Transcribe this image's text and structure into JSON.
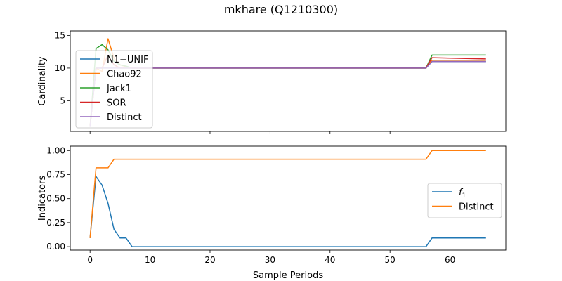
{
  "title": "mkhare (Q1210300)",
  "colors": {
    "blue": "#1f77b4",
    "orange": "#ff7f0e",
    "green": "#2ca02c",
    "red": "#d62728",
    "purple": "#9467bd"
  },
  "chart_data": [
    {
      "type": "line",
      "title": "",
      "xlabel": "",
      "ylabel": "Cardinality",
      "xlim": [
        -3.3,
        69.3
      ],
      "ylim": [
        0.3,
        15.7
      ],
      "xticks": [
        0,
        10,
        20,
        30,
        40,
        50,
        60
      ],
      "xticks_labels_shown": false,
      "yticks": [
        5,
        10,
        15
      ],
      "legend_position": "upper-left",
      "grid": false,
      "series": [
        {
          "name": "N1−UNIF",
          "color": "#1f77b4",
          "points": [
            [
              0,
              1
            ],
            [
              1,
              10
            ],
            [
              2,
              10
            ],
            [
              3,
              10
            ],
            [
              56,
              10
            ],
            [
              57,
              11
            ],
            [
              66,
              11
            ]
          ]
        },
        {
          "name": "Chao92",
          "color": "#ff7f0e",
          "points": [
            [
              0,
              1
            ],
            [
              1,
              10
            ],
            [
              2,
              9.5
            ],
            [
              3,
              14.5
            ],
            [
              4,
              11.5
            ],
            [
              5,
              10.5
            ],
            [
              6,
              10.2
            ],
            [
              7,
              10
            ],
            [
              56,
              10
            ],
            [
              57,
              11.2
            ],
            [
              66,
              11.2
            ]
          ]
        },
        {
          "name": "Jack1",
          "color": "#2ca02c",
          "points": [
            [
              0,
              1
            ],
            [
              1,
              13
            ],
            [
              2,
              13.6
            ],
            [
              3,
              12.8
            ],
            [
              4,
              11
            ],
            [
              5,
              10.5
            ],
            [
              6,
              10.3
            ],
            [
              7,
              10
            ],
            [
              56,
              10
            ],
            [
              57,
              12
            ],
            [
              66,
              12
            ]
          ]
        },
        {
          "name": "SOR",
          "color": "#d62728",
          "points": [
            [
              0,
              1
            ],
            [
              1,
              10
            ],
            [
              2,
              10
            ],
            [
              3,
              12
            ],
            [
              4,
              10.5
            ],
            [
              5,
              10
            ],
            [
              56,
              10
            ],
            [
              57,
              11.6
            ],
            [
              66,
              11.4
            ]
          ]
        },
        {
          "name": "Distinct",
          "color": "#9467bd",
          "points": [
            [
              0,
              1
            ],
            [
              1,
              10
            ],
            [
              2,
              10
            ],
            [
              56,
              10
            ],
            [
              57,
              11
            ],
            [
              66,
              11
            ]
          ]
        }
      ]
    },
    {
      "type": "line",
      "title": "",
      "xlabel": "Sample Periods",
      "ylabel": "Indicators",
      "xlim": [
        -3.3,
        69.3
      ],
      "ylim": [
        -0.036,
        1.046
      ],
      "xticks": [
        0,
        10,
        20,
        30,
        40,
        50,
        60
      ],
      "yticks": [
        0.0,
        0.25,
        0.5,
        0.75,
        1.0
      ],
      "yticks_labels": [
        "0.00",
        "0.25",
        "0.50",
        "0.75",
        "1.00"
      ],
      "legend_position": "center-right",
      "grid": false,
      "series": [
        {
          "name": "f1",
          "color": "#1f77b4",
          "points": [
            [
              0,
              0.09
            ],
            [
              1,
              0.73
            ],
            [
              2,
              0.64
            ],
            [
              3,
              0.45
            ],
            [
              4,
              0.18
            ],
            [
              5,
              0.09
            ],
            [
              6,
              0.09
            ],
            [
              7,
              0
            ],
            [
              56,
              0
            ],
            [
              57,
              0.09
            ],
            [
              66,
              0.09
            ]
          ]
        },
        {
          "name": "Distinct",
          "color": "#ff7f0e",
          "points": [
            [
              0,
              0.09
            ],
            [
              1,
              0.82
            ],
            [
              2,
              0.82
            ],
            [
              3,
              0.82
            ],
            [
              4,
              0.91
            ],
            [
              56,
              0.91
            ],
            [
              57,
              1.0
            ],
            [
              66,
              1.0
            ]
          ]
        }
      ]
    }
  ]
}
